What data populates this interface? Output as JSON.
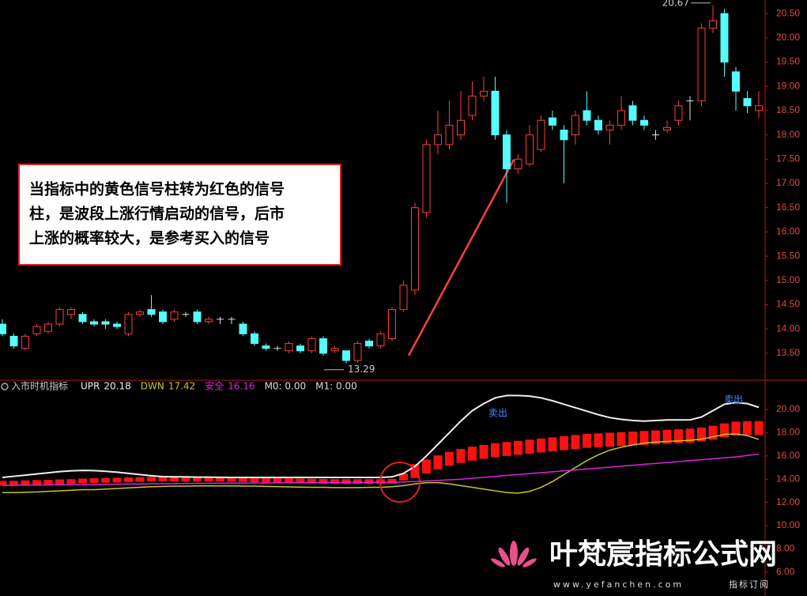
{
  "chart_data": [
    {
      "type": "candlestick",
      "open": [
        14.1,
        13.85,
        13.6,
        13.9,
        13.95,
        14.1,
        14.3,
        14.3,
        14.15,
        14.15,
        14.1,
        13.9,
        14.3,
        14.4,
        14.35,
        14.2,
        14.3,
        14.35,
        14.15,
        14.2,
        14.2,
        14.1,
        13.9,
        13.65,
        13.6,
        13.55,
        13.65,
        13.55,
        13.8,
        13.55,
        13.55,
        13.35,
        13.75,
        13.65,
        13.8,
        14.4,
        14.8,
        16.4,
        17.8,
        17.8,
        18.0,
        18.4,
        18.8,
        18.9,
        18.0,
        17.3,
        17.4,
        17.7,
        18.35,
        18.1,
        18.0,
        18.5,
        18.3,
        18.1,
        18.2,
        18.6,
        18.3,
        18.0,
        18.1,
        18.3,
        18.7,
        18.7,
        20.2,
        20.5,
        19.3,
        18.75,
        18.5
      ],
      "high": [
        14.2,
        13.9,
        13.9,
        14.1,
        14.15,
        14.45,
        14.45,
        14.35,
        14.2,
        14.2,
        14.15,
        14.35,
        14.4,
        14.7,
        14.4,
        14.4,
        14.35,
        14.4,
        14.25,
        14.25,
        14.25,
        14.15,
        13.95,
        13.7,
        13.65,
        13.75,
        13.7,
        13.85,
        13.85,
        13.65,
        13.55,
        13.75,
        13.8,
        13.95,
        14.45,
        15.0,
        16.6,
        17.9,
        18.5,
        18.7,
        18.9,
        19.1,
        19.2,
        19.2,
        18.1,
        17.6,
        18.2,
        18.4,
        18.5,
        18.2,
        18.5,
        18.9,
        18.4,
        18.3,
        18.8,
        18.7,
        18.4,
        18.1,
        18.3,
        18.7,
        18.8,
        20.3,
        20.67,
        20.6,
        19.4,
        18.9,
        18.9
      ],
      "low": [
        13.85,
        13.6,
        13.55,
        13.85,
        13.9,
        14.05,
        14.2,
        14.1,
        14.05,
        14.0,
        14.0,
        13.85,
        14.25,
        14.25,
        14.1,
        14.15,
        14.25,
        14.1,
        14.1,
        14.1,
        14.1,
        13.85,
        13.65,
        13.55,
        13.55,
        13.5,
        13.5,
        13.5,
        13.45,
        13.5,
        13.29,
        13.3,
        13.6,
        13.6,
        13.75,
        14.35,
        14.7,
        16.3,
        17.6,
        17.7,
        17.9,
        18.3,
        18.7,
        17.9,
        16.6,
        17.2,
        17.35,
        17.65,
        18.1,
        17.0,
        17.8,
        18.2,
        18.0,
        17.8,
        18.1,
        18.2,
        18.1,
        17.9,
        18.05,
        18.2,
        18.3,
        18.6,
        20.1,
        19.2,
        18.5,
        18.45,
        18.35
      ],
      "close": [
        13.9,
        13.65,
        13.85,
        14.05,
        14.1,
        14.4,
        14.4,
        14.15,
        14.1,
        14.1,
        14.05,
        14.3,
        14.35,
        14.3,
        14.15,
        14.35,
        14.3,
        14.15,
        14.2,
        14.2,
        14.2,
        13.9,
        13.7,
        13.6,
        13.6,
        13.7,
        13.55,
        13.8,
        13.5,
        13.6,
        13.35,
        13.7,
        13.65,
        13.9,
        14.4,
        14.9,
        16.5,
        17.8,
        18.0,
        18.2,
        18.3,
        18.8,
        18.9,
        18.0,
        17.3,
        17.5,
        18.0,
        18.3,
        18.2,
        17.9,
        18.4,
        18.3,
        18.1,
        18.2,
        18.5,
        18.3,
        18.2,
        18.0,
        18.15,
        18.6,
        18.7,
        20.2,
        20.35,
        19.5,
        18.9,
        18.6,
        18.6
      ],
      "up_color": "#ff3c3c",
      "down_color": "#54fcfc",
      "flat_color": "#e0e0e0",
      "ylim": [
        12.96,
        20.78
      ],
      "yticks": [
        {
          "value": 13.5,
          "label": "13.50"
        },
        {
          "value": 14,
          "label": "14.00"
        },
        {
          "value": 14.5,
          "label": "14.50"
        },
        {
          "value": 15,
          "label": "15.00"
        },
        {
          "value": 15.5,
          "label": "15.50"
        },
        {
          "value": 16,
          "label": "16.00"
        },
        {
          "value": 16.5,
          "label": "16.50"
        },
        {
          "value": 17,
          "label": "17.00"
        },
        {
          "value": 17.5,
          "label": "17.50"
        },
        {
          "value": 18,
          "label": "18.00"
        },
        {
          "value": 18.5,
          "label": "18.50"
        },
        {
          "value": 19,
          "label": "19.00"
        },
        {
          "value": 19.5,
          "label": "19.50"
        },
        {
          "value": 20,
          "label": "20.00"
        },
        {
          "value": 20.5,
          "label": "20.50"
        }
      ],
      "annotations": [
        20.67,
        13.29
      ],
      "note": [
        "当指标中的黄色信号柱转为红色的信号",
        "柱，是波段上涨行情启动的信号，后市",
        "上涨的概率较大，是参考买入的信号"
      ]
    },
    {
      "type": "indicator",
      "title": "入市时机指标",
      "series": [
        {
          "name": "UPR",
          "color": "#f0f0f0",
          "values": [
            14.15,
            14.25,
            14.35,
            14.45,
            14.55,
            14.65,
            14.72,
            14.76,
            14.74,
            14.68,
            14.6,
            14.5,
            14.4,
            14.3,
            14.22,
            14.2,
            14.2,
            14.18,
            14.18,
            14.16,
            14.15,
            14.15,
            14.15,
            14.15,
            14.15,
            14.15,
            14.15,
            14.15,
            14.15,
            14.15,
            14.15,
            14.15,
            14.15,
            14.15,
            14.2,
            14.5,
            15.1,
            16.0,
            17.0,
            18.0,
            19.0,
            19.9,
            20.5,
            21.0,
            21.2,
            21.2,
            21.15,
            21.0,
            20.75,
            20.45,
            20.15,
            19.85,
            19.55,
            19.3,
            19.15,
            19.05,
            19.0,
            19.05,
            19.1,
            19.1,
            19.1,
            19.35,
            19.9,
            20.45,
            20.6,
            20.5,
            20.18
          ]
        },
        {
          "name": "DWN",
          "color": "#c8c820",
          "values": [
            12.85,
            12.85,
            12.88,
            12.9,
            12.95,
            13.0,
            13.05,
            13.1,
            13.1,
            13.15,
            13.2,
            13.25,
            13.3,
            13.35,
            13.38,
            13.4,
            13.4,
            13.42,
            13.42,
            13.42,
            13.42,
            13.4,
            13.4,
            13.38,
            13.36,
            13.34,
            13.32,
            13.3,
            13.3,
            13.28,
            13.28,
            13.28,
            13.3,
            13.3,
            13.35,
            13.45,
            13.6,
            13.7,
            13.7,
            13.6,
            13.45,
            13.3,
            13.15,
            13.0,
            12.85,
            12.8,
            12.95,
            13.3,
            13.8,
            14.4,
            15.0,
            15.6,
            16.1,
            16.5,
            16.75,
            16.95,
            17.1,
            17.2,
            17.25,
            17.3,
            17.35,
            17.45,
            17.65,
            17.85,
            17.9,
            17.75,
            17.42
          ]
        },
        {
          "name": "安全",
          "color": "#e020e0",
          "values": [
            13.47,
            13.48,
            13.49,
            13.5,
            13.51,
            13.52,
            13.53,
            13.54,
            13.55,
            13.56,
            13.57,
            13.58,
            13.59,
            13.6,
            13.61,
            13.62,
            13.63,
            13.64,
            13.65,
            13.66,
            13.67,
            13.67,
            13.68,
            13.68,
            13.69,
            13.69,
            13.7,
            13.7,
            13.71,
            13.71,
            13.72,
            13.72,
            13.73,
            13.73,
            13.74,
            13.76,
            13.8,
            13.85,
            13.9,
            13.95,
            14.0,
            14.08,
            14.16,
            14.24,
            14.32,
            14.4,
            14.48,
            14.56,
            14.64,
            14.72,
            14.8,
            14.88,
            14.96,
            15.04,
            15.12,
            15.2,
            15.28,
            15.36,
            15.44,
            15.52,
            15.6,
            15.68,
            15.76,
            15.84,
            15.92,
            16.04,
            16.16
          ]
        }
      ],
      "bars": {
        "color": "#ff1010",
        "high": [
          13.85,
          13.85,
          13.9,
          13.92,
          13.95,
          13.98,
          14.0,
          14.05,
          14.08,
          14.1,
          14.12,
          14.15,
          14.17,
          14.2,
          14.2,
          14.2,
          14.2,
          14.2,
          14.2,
          14.2,
          14.18,
          14.16,
          14.14,
          14.12,
          14.1,
          14.08,
          14.06,
          14.04,
          14.02,
          14.0,
          14.0,
          14.0,
          14.0,
          14.0,
          14.02,
          14.5,
          15.3,
          15.7,
          16.05,
          16.35,
          16.6,
          16.8,
          16.95,
          17.1,
          17.2,
          17.3,
          17.4,
          17.5,
          17.6,
          17.7,
          17.8,
          17.9,
          17.95,
          18.0,
          18.05,
          18.1,
          18.15,
          18.2,
          18.25,
          18.3,
          18.35,
          18.45,
          18.6,
          18.8,
          18.95,
          19.0,
          19.0
        ],
        "low": [
          13.45,
          13.45,
          13.5,
          13.52,
          13.55,
          13.58,
          13.6,
          13.65,
          13.68,
          13.7,
          13.72,
          13.75,
          13.77,
          13.8,
          13.8,
          13.8,
          13.8,
          13.8,
          13.8,
          13.8,
          13.78,
          13.76,
          13.74,
          13.72,
          13.7,
          13.68,
          13.66,
          13.64,
          13.62,
          13.6,
          13.6,
          13.6,
          13.6,
          13.6,
          13.62,
          13.9,
          14.1,
          14.5,
          14.85,
          15.15,
          15.4,
          15.6,
          15.75,
          15.9,
          16.0,
          16.1,
          16.2,
          16.3,
          16.4,
          16.5,
          16.6,
          16.7,
          16.75,
          16.8,
          16.85,
          16.9,
          16.95,
          17.0,
          17.05,
          17.1,
          17.15,
          17.25,
          17.4,
          17.6,
          17.75,
          17.8,
          17.8
        ]
      },
      "readouts": [
        "M0: 0.00",
        "M1: 0.00"
      ],
      "annotations": [
        "卖出",
        "卖出"
      ],
      "ylim": [
        3.95,
        22.45
      ],
      "yticks": [
        {
          "value": 6,
          "label": "6.00"
        },
        {
          "value": 8,
          "label": "8.00"
        },
        {
          "value": 10,
          "label": "10.00"
        },
        {
          "value": 12,
          "label": "12.00"
        },
        {
          "value": 14,
          "label": "14.00"
        },
        {
          "value": 16,
          "label": "16.00"
        },
        {
          "value": 18,
          "label": "18.00"
        },
        {
          "value": 20,
          "label": "20.00"
        }
      ]
    }
  ],
  "watermark": {
    "title": "叶梵宸指标公式网",
    "url": "www.yefanchen.com",
    "tagline": "指标订阅"
  }
}
